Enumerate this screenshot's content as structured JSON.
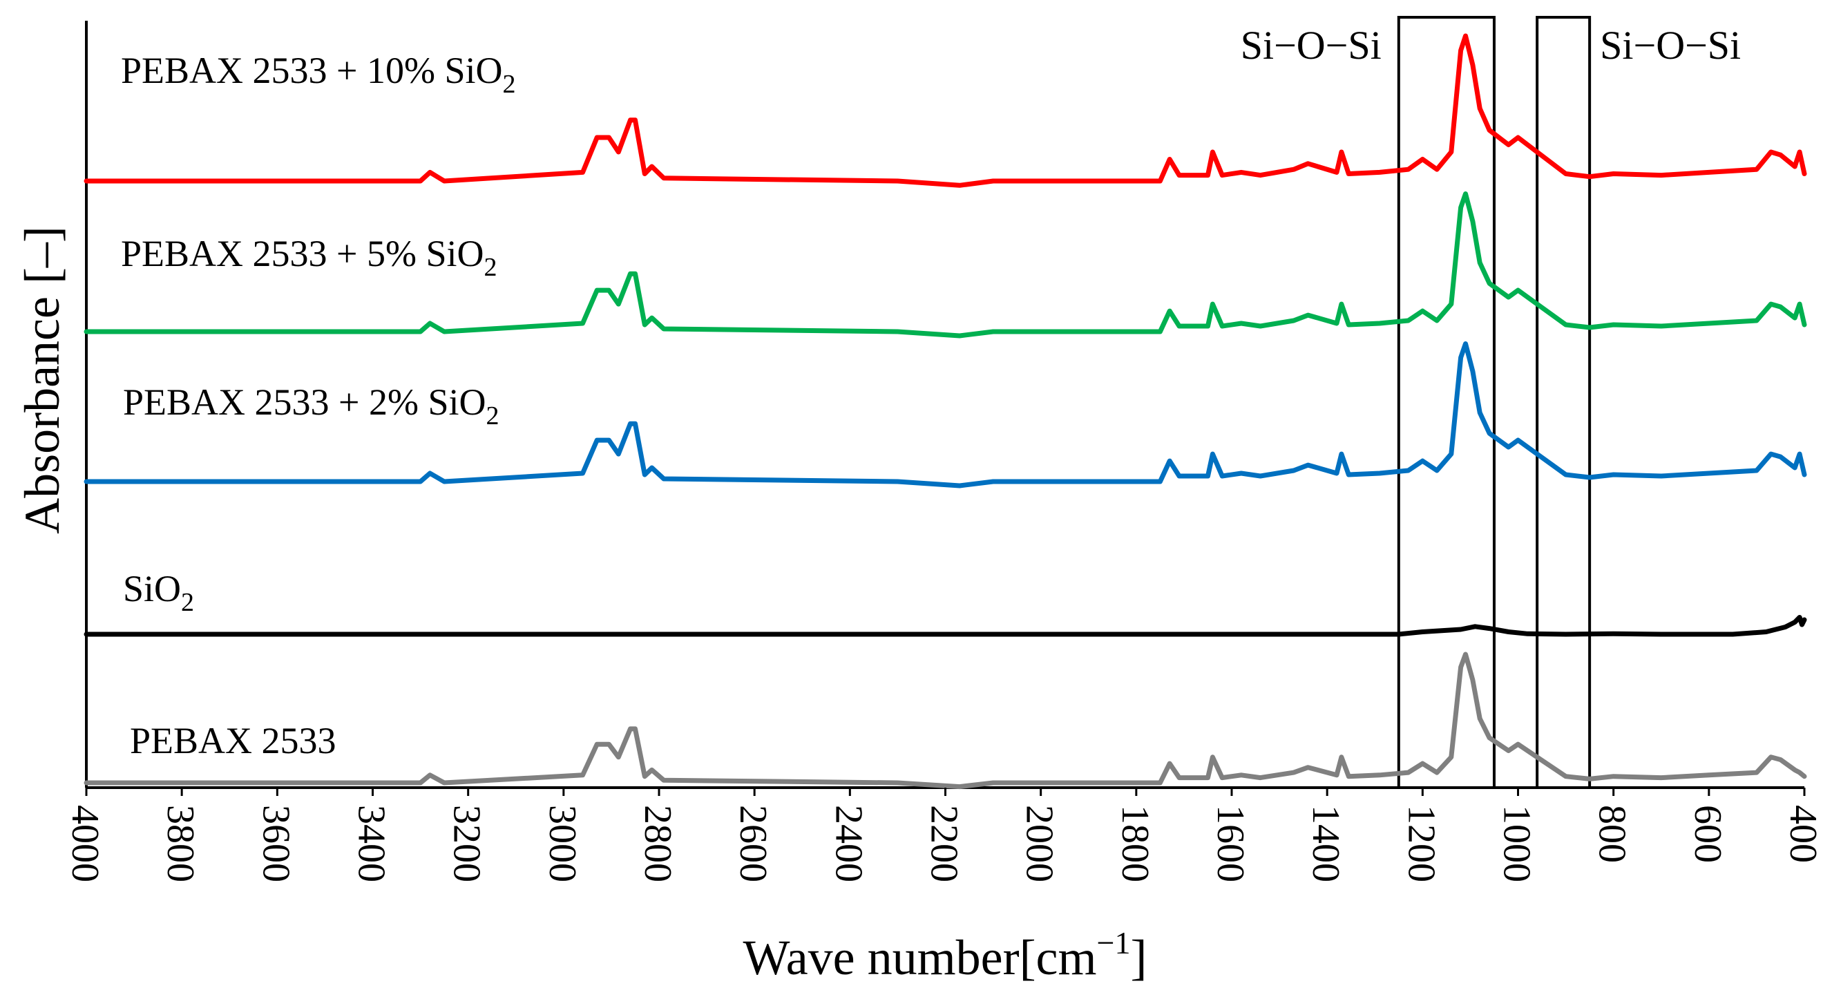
{
  "chart_data": {
    "type": "line",
    "title": "",
    "xlabel": "Wave number[cm⁻¹]",
    "xlabel_main": "Wave number[cm",
    "xlabel_sup": "−1",
    "xlabel_end": "]",
    "ylabel": "Absorbance  [–]",
    "xlim": [
      4000,
      400
    ],
    "x_reversed": true,
    "y_ticks_shown": false,
    "grid": false,
    "legend": "inline labels above each trace",
    "x_ticks": [
      "4000",
      "3800",
      "3600",
      "3400",
      "3200",
      "3000",
      "2800",
      "2600",
      "2400",
      "2200",
      "2000",
      "1800",
      "1600",
      "1400",
      "1200",
      "1000",
      "800",
      "600",
      "400"
    ],
    "annotations": [
      {
        "text": "Si−O−Si",
        "box_range_cm": [
          1250,
          1050
        ]
      },
      {
        "text": "Si−O−Si",
        "box_range_cm": [
          960,
          850
        ]
      }
    ],
    "series": [
      {
        "name": "PEBAX 2533 + 10% SiO2",
        "label_main": "PEBAX 2533 + 10% SiO",
        "label_sub": "2",
        "color": "#ff0000",
        "offset": 4.0,
        "peak_scale": 1.0,
        "points": [
          [
            4000,
            0
          ],
          [
            3300,
            0
          ],
          [
            3280,
            0.06
          ],
          [
            3250,
            0
          ],
          [
            2960,
            0.06
          ],
          [
            2930,
            0.3
          ],
          [
            2905,
            0.3
          ],
          [
            2885,
            0.2
          ],
          [
            2860,
            0.42
          ],
          [
            2850,
            0.42
          ],
          [
            2830,
            0.05
          ],
          [
            2815,
            0.1
          ],
          [
            2790,
            0.02
          ],
          [
            2300,
            0
          ],
          [
            2170,
            -0.03
          ],
          [
            2100,
            0
          ],
          [
            1750,
            0
          ],
          [
            1730,
            0.15
          ],
          [
            1710,
            0.04
          ],
          [
            1650,
            0.04
          ],
          [
            1640,
            0.2
          ],
          [
            1620,
            0.04
          ],
          [
            1580,
            0.06
          ],
          [
            1540,
            0.04
          ],
          [
            1470,
            0.08
          ],
          [
            1440,
            0.12
          ],
          [
            1380,
            0.06
          ],
          [
            1370,
            0.2
          ],
          [
            1355,
            0.05
          ],
          [
            1290,
            0.06
          ],
          [
            1230,
            0.08
          ],
          [
            1200,
            0.15
          ],
          [
            1170,
            0.08
          ],
          [
            1140,
            0.2
          ],
          [
            1120,
            0.9
          ],
          [
            1110,
            1.0
          ],
          [
            1095,
            0.8
          ],
          [
            1080,
            0.5
          ],
          [
            1060,
            0.35
          ],
          [
            1020,
            0.25
          ],
          [
            1000,
            0.3
          ],
          [
            960,
            0.2
          ],
          [
            900,
            0.05
          ],
          [
            850,
            0.03
          ],
          [
            800,
            0.05
          ],
          [
            700,
            0.04
          ],
          [
            600,
            0.06
          ],
          [
            500,
            0.08
          ],
          [
            470,
            0.2
          ],
          [
            450,
            0.18
          ],
          [
            420,
            0.1
          ],
          [
            410,
            0.2
          ],
          [
            400,
            0.05
          ]
        ]
      },
      {
        "name": "PEBAX 2533 + 5% SiO2",
        "label_main": "PEBAX 2533 + 5% SiO",
        "label_sub": "2",
        "color": "#00b050",
        "offset": 3.0,
        "peak_scale": 0.95,
        "points": [
          [
            4000,
            0
          ],
          [
            3300,
            0
          ],
          [
            3280,
            0.06
          ],
          [
            3250,
            0
          ],
          [
            2960,
            0.06
          ],
          [
            2930,
            0.3
          ],
          [
            2905,
            0.3
          ],
          [
            2885,
            0.2
          ],
          [
            2860,
            0.42
          ],
          [
            2850,
            0.42
          ],
          [
            2830,
            0.05
          ],
          [
            2815,
            0.1
          ],
          [
            2790,
            0.02
          ],
          [
            2300,
            0
          ],
          [
            2170,
            -0.03
          ],
          [
            2100,
            0
          ],
          [
            1750,
            0
          ],
          [
            1730,
            0.15
          ],
          [
            1710,
            0.04
          ],
          [
            1650,
            0.04
          ],
          [
            1640,
            0.2
          ],
          [
            1620,
            0.04
          ],
          [
            1580,
            0.06
          ],
          [
            1540,
            0.04
          ],
          [
            1470,
            0.08
          ],
          [
            1440,
            0.12
          ],
          [
            1380,
            0.06
          ],
          [
            1370,
            0.2
          ],
          [
            1355,
            0.05
          ],
          [
            1290,
            0.06
          ],
          [
            1230,
            0.08
          ],
          [
            1200,
            0.15
          ],
          [
            1170,
            0.08
          ],
          [
            1140,
            0.2
          ],
          [
            1120,
            0.9
          ],
          [
            1110,
            1.0
          ],
          [
            1095,
            0.8
          ],
          [
            1080,
            0.5
          ],
          [
            1060,
            0.35
          ],
          [
            1020,
            0.25
          ],
          [
            1000,
            0.3
          ],
          [
            960,
            0.2
          ],
          [
            900,
            0.05
          ],
          [
            850,
            0.03
          ],
          [
            800,
            0.05
          ],
          [
            700,
            0.04
          ],
          [
            600,
            0.06
          ],
          [
            500,
            0.08
          ],
          [
            470,
            0.2
          ],
          [
            450,
            0.18
          ],
          [
            420,
            0.1
          ],
          [
            410,
            0.2
          ],
          [
            400,
            0.05
          ]
        ]
      },
      {
        "name": "PEBAX 2533 + 2% SiO2",
        "label_main": "PEBAX 2533 + 2% SiO",
        "label_sub": "2",
        "color": "#0070c0",
        "offset": 2.0,
        "peak_scale": 0.95,
        "points": [
          [
            4000,
            0
          ],
          [
            3300,
            0
          ],
          [
            3280,
            0.06
          ],
          [
            3250,
            0
          ],
          [
            2960,
            0.06
          ],
          [
            2930,
            0.3
          ],
          [
            2905,
            0.3
          ],
          [
            2885,
            0.2
          ],
          [
            2860,
            0.42
          ],
          [
            2850,
            0.42
          ],
          [
            2830,
            0.05
          ],
          [
            2815,
            0.1
          ],
          [
            2790,
            0.02
          ],
          [
            2300,
            0
          ],
          [
            2170,
            -0.03
          ],
          [
            2100,
            0
          ],
          [
            1750,
            0
          ],
          [
            1730,
            0.15
          ],
          [
            1710,
            0.04
          ],
          [
            1650,
            0.04
          ],
          [
            1640,
            0.2
          ],
          [
            1620,
            0.04
          ],
          [
            1580,
            0.06
          ],
          [
            1540,
            0.04
          ],
          [
            1470,
            0.08
          ],
          [
            1440,
            0.12
          ],
          [
            1380,
            0.06
          ],
          [
            1370,
            0.2
          ],
          [
            1355,
            0.05
          ],
          [
            1290,
            0.06
          ],
          [
            1230,
            0.08
          ],
          [
            1200,
            0.15
          ],
          [
            1170,
            0.08
          ],
          [
            1140,
            0.2
          ],
          [
            1120,
            0.9
          ],
          [
            1110,
            1.0
          ],
          [
            1095,
            0.8
          ],
          [
            1080,
            0.5
          ],
          [
            1060,
            0.35
          ],
          [
            1020,
            0.25
          ],
          [
            1000,
            0.3
          ],
          [
            960,
            0.2
          ],
          [
            900,
            0.05
          ],
          [
            850,
            0.03
          ],
          [
            800,
            0.05
          ],
          [
            700,
            0.04
          ],
          [
            600,
            0.06
          ],
          [
            500,
            0.08
          ],
          [
            470,
            0.2
          ],
          [
            450,
            0.18
          ],
          [
            420,
            0.1
          ],
          [
            410,
            0.2
          ],
          [
            400,
            0.05
          ]
        ]
      },
      {
        "name": "SiO2",
        "label_main": "SiO",
        "label_sub": "2",
        "color": "#000000",
        "offset": 1.0,
        "peak_scale": 1.0,
        "points": [
          [
            4000,
            0
          ],
          [
            1250,
            0
          ],
          [
            1200,
            0.05
          ],
          [
            1120,
            0.1
          ],
          [
            1090,
            0.16
          ],
          [
            1060,
            0.12
          ],
          [
            1020,
            0.05
          ],
          [
            980,
            0.01
          ],
          [
            900,
            0
          ],
          [
            800,
            0.01
          ],
          [
            700,
            0
          ],
          [
            550,
            0
          ],
          [
            480,
            0.05
          ],
          [
            440,
            0.15
          ],
          [
            420,
            0.25
          ],
          [
            410,
            0.35
          ],
          [
            405,
            0.2
          ],
          [
            400,
            0.3
          ]
        ]
      },
      {
        "name": "PEBAX 2533",
        "label_main": "PEBAX 2533",
        "label_sub": "",
        "color": "#808080",
        "offset": 0.0,
        "peak_scale": 0.93,
        "points": [
          [
            4000,
            0
          ],
          [
            3300,
            0
          ],
          [
            3280,
            0.06
          ],
          [
            3250,
            0
          ],
          [
            2960,
            0.06
          ],
          [
            2930,
            0.3
          ],
          [
            2905,
            0.3
          ],
          [
            2885,
            0.2
          ],
          [
            2860,
            0.42
          ],
          [
            2850,
            0.42
          ],
          [
            2830,
            0.05
          ],
          [
            2815,
            0.1
          ],
          [
            2790,
            0.02
          ],
          [
            2300,
            0
          ],
          [
            2170,
            -0.03
          ],
          [
            2100,
            0
          ],
          [
            1750,
            0
          ],
          [
            1730,
            0.15
          ],
          [
            1710,
            0.04
          ],
          [
            1650,
            0.04
          ],
          [
            1640,
            0.2
          ],
          [
            1620,
            0.04
          ],
          [
            1580,
            0.06
          ],
          [
            1540,
            0.04
          ],
          [
            1470,
            0.08
          ],
          [
            1440,
            0.12
          ],
          [
            1380,
            0.06
          ],
          [
            1370,
            0.2
          ],
          [
            1355,
            0.05
          ],
          [
            1290,
            0.06
          ],
          [
            1230,
            0.08
          ],
          [
            1200,
            0.15
          ],
          [
            1170,
            0.08
          ],
          [
            1140,
            0.2
          ],
          [
            1120,
            0.9
          ],
          [
            1110,
            1.0
          ],
          [
            1095,
            0.8
          ],
          [
            1080,
            0.5
          ],
          [
            1060,
            0.35
          ],
          [
            1020,
            0.25
          ],
          [
            1000,
            0.3
          ],
          [
            960,
            0.2
          ],
          [
            900,
            0.05
          ],
          [
            850,
            0.03
          ],
          [
            800,
            0.05
          ],
          [
            700,
            0.04
          ],
          [
            600,
            0.06
          ],
          [
            500,
            0.08
          ],
          [
            470,
            0.2
          ],
          [
            450,
            0.18
          ],
          [
            420,
            0.1
          ],
          [
            410,
            0.08
          ],
          [
            400,
            0.05
          ]
        ]
      }
    ]
  }
}
